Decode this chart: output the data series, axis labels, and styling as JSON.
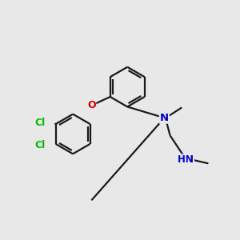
{
  "bg_color": "#e8e8e8",
  "bond_color": "#1a1a1a",
  "N_color": "#0000cc",
  "O_color": "#cc0000",
  "Cl_color": "#00bb00",
  "line_width": 1.6,
  "dbo": 0.012,
  "figsize": [
    3.0,
    3.0
  ],
  "dpi": 100,
  "xlim": [
    -0.55,
    1.05
  ],
  "ylim": [
    -0.15,
    1.1
  ]
}
